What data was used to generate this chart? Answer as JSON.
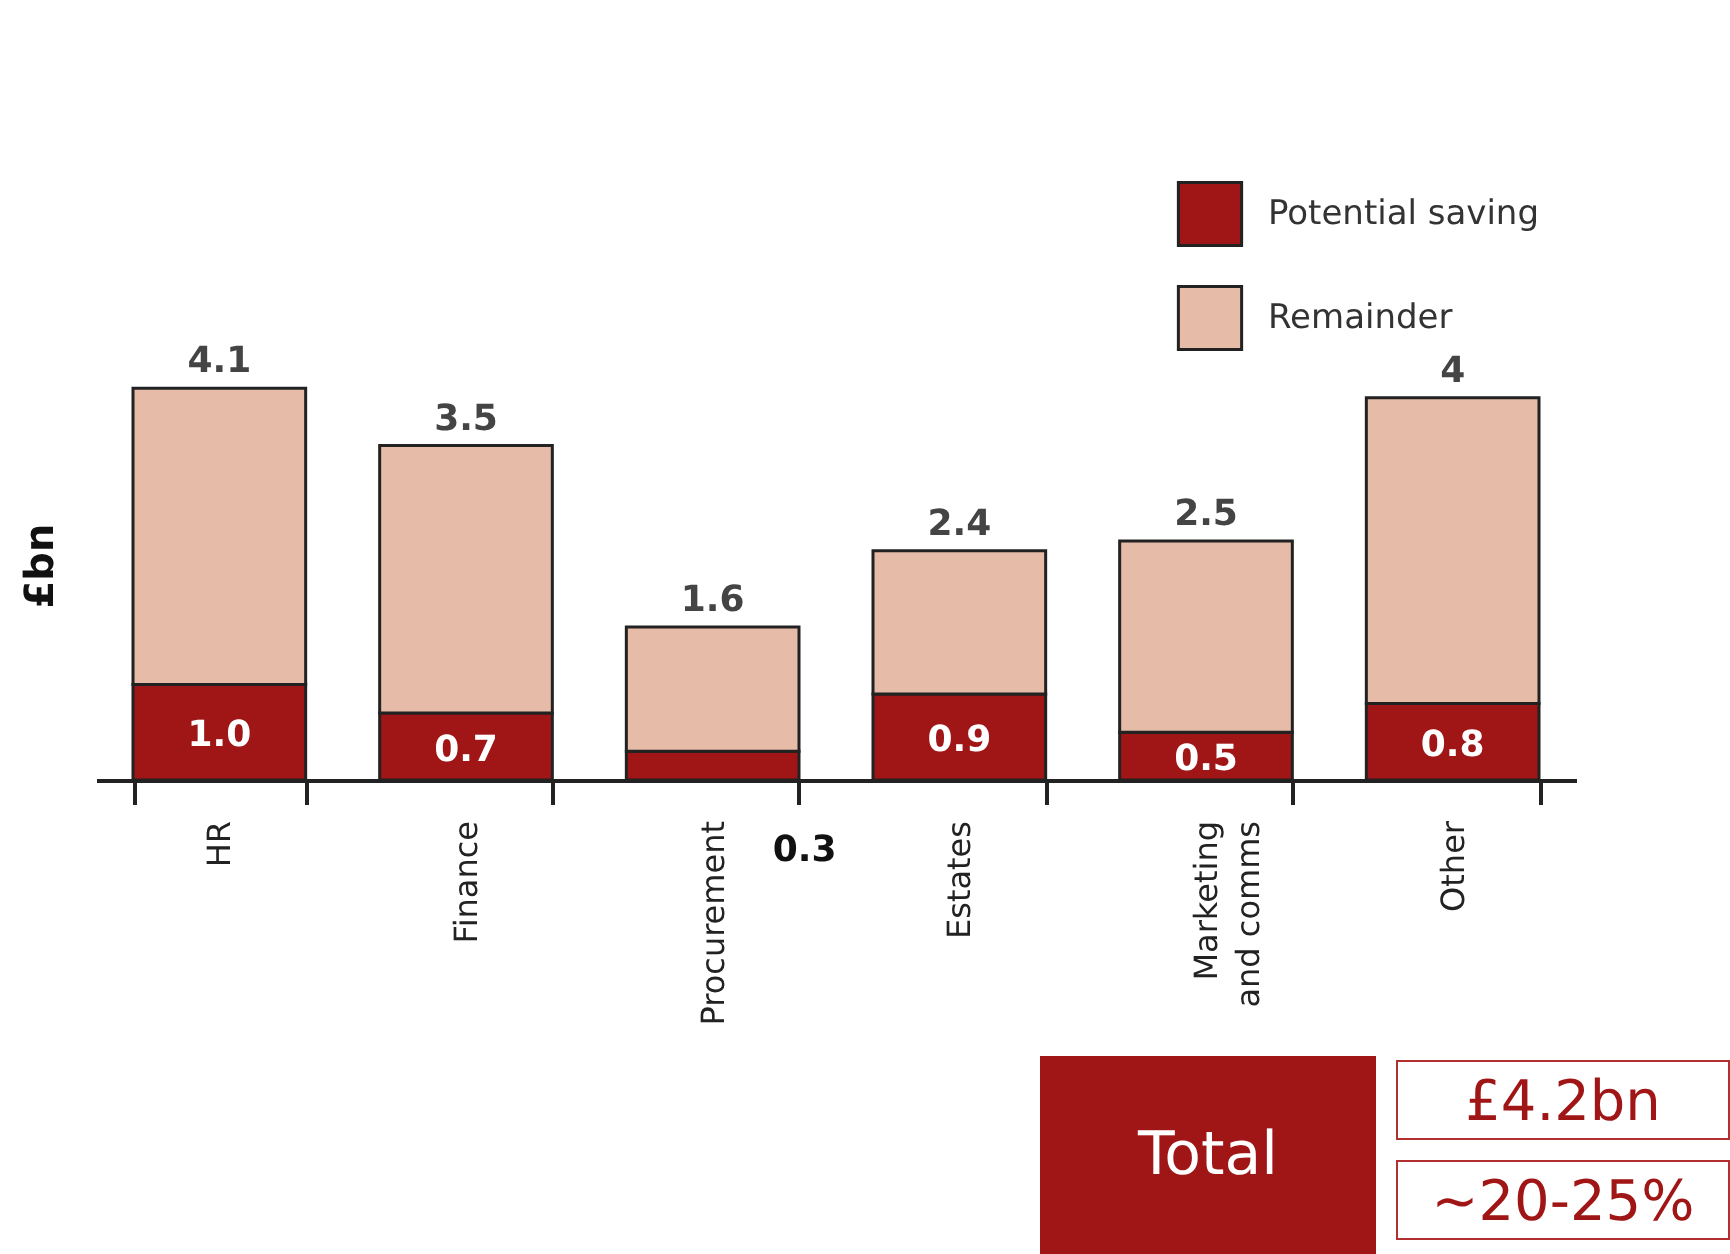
{
  "chart_data": {
    "type": "bar",
    "ylabel": "£bn",
    "stacked": true,
    "legend": "top right",
    "tick_labels": "x",
    "categories": [
      "HR",
      "Finance",
      "Procurement",
      "Estates",
      "Marketing and comms",
      "Other"
    ],
    "series": [
      {
        "name": "Potential saving",
        "color": "#a01515",
        "values": [
          1.0,
          0.7,
          0.3,
          0.9,
          0.5,
          0.8
        ],
        "value_labels": [
          "1.0",
          "0.7",
          null,
          "0.9",
          "0.5",
          "0.8"
        ]
      },
      {
        "name": "Remainder",
        "color": "#e6bba7",
        "values": [
          3.1,
          2.8,
          1.3,
          1.5,
          2.0,
          3.2
        ]
      }
    ],
    "totals": [
      "4.1",
      "3.5",
      "1.6",
      "2.4",
      "2.5",
      "4"
    ],
    "annotations": [
      {
        "text": "0.3",
        "x": "Procurement",
        "y": 0.3
      },
      "Total",
      "£4.2bn",
      "~20-25%"
    ]
  }
}
